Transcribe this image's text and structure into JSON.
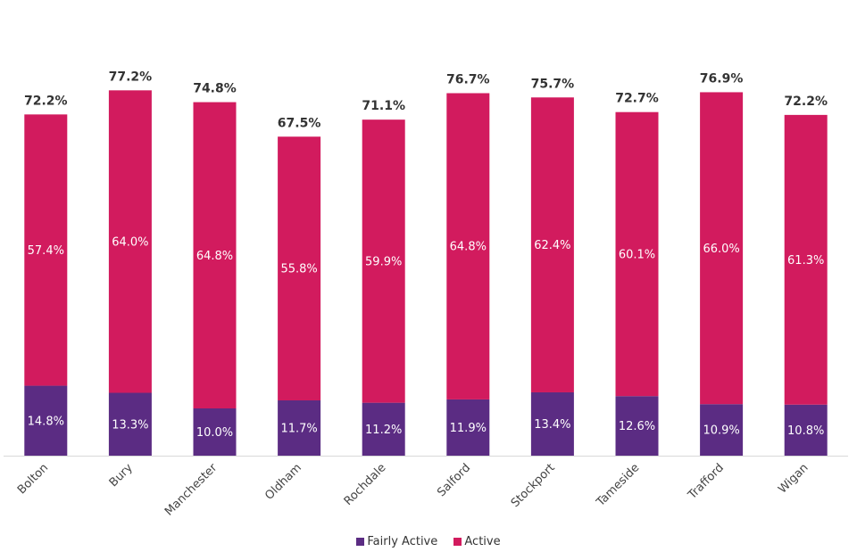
{
  "chart_data": {
    "type": "bar",
    "stacked": true,
    "title": "",
    "xlabel": "",
    "ylabel": "",
    "ylim": [
      0,
      80
    ],
    "grid": false,
    "legend_position": "bottom",
    "categories": [
      "Bolton",
      "Bury",
      "Manchester",
      "Oldham",
      "Rochdale",
      "Salford",
      "Stockport",
      "Tameside",
      "Trafford",
      "Wigan"
    ],
    "series": [
      {
        "name": "Fairly Active",
        "color": "#5b2c83",
        "values": [
          14.8,
          13.3,
          10.0,
          11.7,
          11.2,
          11.9,
          13.4,
          12.6,
          10.9,
          10.8
        ]
      },
      {
        "name": "Active",
        "color": "#d21b5e",
        "values": [
          57.4,
          64.0,
          64.8,
          55.8,
          59.9,
          64.8,
          62.4,
          60.1,
          66.0,
          61.3
        ]
      }
    ],
    "totals": [
      72.2,
      77.2,
      74.8,
      67.5,
      71.1,
      76.7,
      75.7,
      72.7,
      76.9,
      72.2
    ],
    "value_suffix": "%"
  }
}
